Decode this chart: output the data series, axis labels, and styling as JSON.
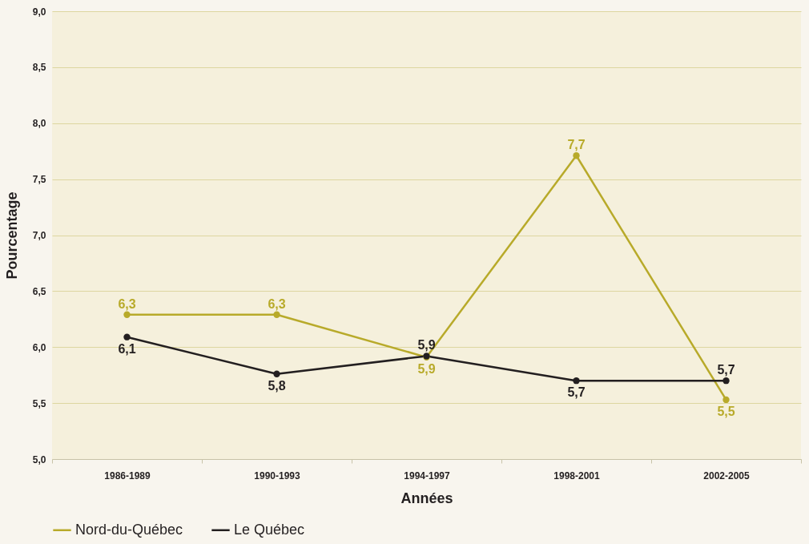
{
  "chart_data": {
    "type": "line",
    "xlabel": "Années",
    "ylabel": "Pourcentage",
    "categories": [
      "1986-1989",
      "1990-1993",
      "1994-1997",
      "1998-2001",
      "2002-2005"
    ],
    "series": [
      {
        "name": "Nord-du-Québec",
        "color": "#b8aa2a",
        "values": [
          6.29,
          6.29,
          5.91,
          7.71,
          5.53
        ],
        "value_labels": [
          "6,3",
          "6,3",
          "5,9",
          "7,7",
          "5,5"
        ]
      },
      {
        "name": "Le Québec",
        "color": "#231f20",
        "values": [
          6.09,
          5.76,
          5.92,
          5.7,
          5.7
        ],
        "value_labels": [
          "6,1",
          "5,8",
          "5,9",
          "5,7",
          "5,7"
        ]
      }
    ],
    "ylim": [
      5.0,
      9.0
    ],
    "yticks": [
      {
        "value": 5.0,
        "label": "5,0"
      },
      {
        "value": 5.5,
        "label": "5,5"
      },
      {
        "value": 6.0,
        "label": "6,0"
      },
      {
        "value": 6.5,
        "label": "6,5"
      },
      {
        "value": 7.0,
        "label": "7,0"
      },
      {
        "value": 7.5,
        "label": "7,5"
      },
      {
        "value": 8.0,
        "label": "8,0"
      },
      {
        "value": 8.5,
        "label": "8,5"
      },
      {
        "value": 9.0,
        "label": "9,0"
      }
    ],
    "grid": "y",
    "legend": "bottom",
    "marker": "circle",
    "line_style": "solid"
  }
}
